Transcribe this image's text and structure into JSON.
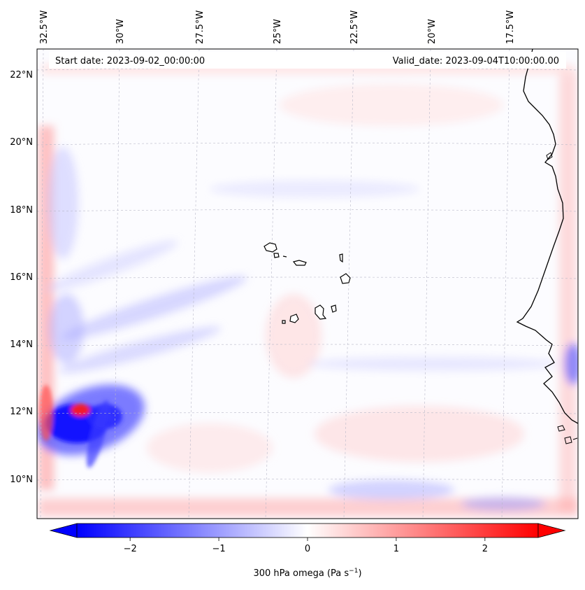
{
  "header": {
    "start_date": "Start date: 2023-09-02_00:00:00",
    "valid_date": "Valid_date: 2023-09-04T10:00:00.00"
  },
  "map": {
    "lon_labels": [
      "32.5°W",
      "30°W",
      "27.5°W",
      "25°W",
      "22.5°W",
      "20°W",
      "17.5°W"
    ],
    "lat_labels": [
      "22°N",
      "20°N",
      "18°N",
      "16°N",
      "14°N",
      "12°N",
      "10°N"
    ],
    "gridlines": true
  },
  "colorbar": {
    "ticks": [
      "−2",
      "−1",
      "0",
      "1",
      "2"
    ],
    "tick_values": [
      -2,
      -1,
      0,
      1,
      2
    ],
    "range": [
      -2.6,
      2.6
    ],
    "label_main": "300 hPa omega (Pa s",
    "label_exp": "−1",
    "label_close": ")",
    "extend": "both"
  },
  "colors": {
    "negative": "#0000ff",
    "zero": "#ffffff",
    "positive": "#ff0000",
    "coastline": "#000000"
  }
}
